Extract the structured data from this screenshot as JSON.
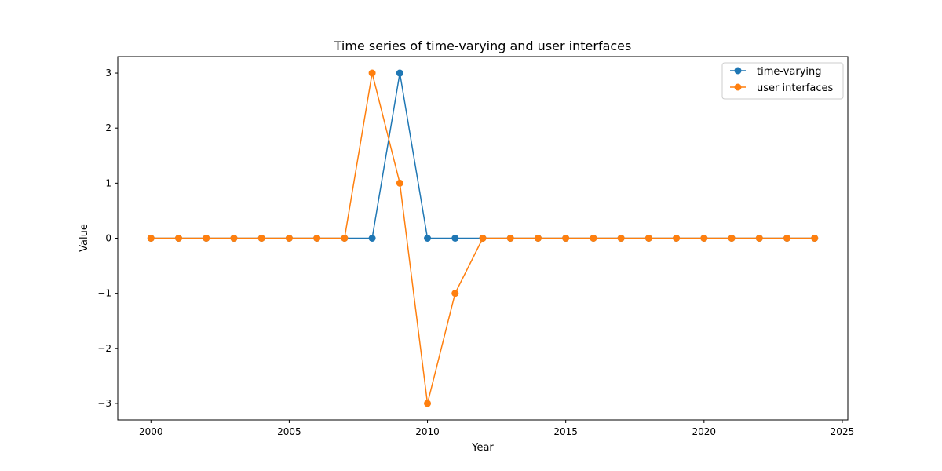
{
  "chart_data": {
    "type": "line",
    "title": "Time series of time-varying and user interfaces",
    "xlabel": "Year",
    "ylabel": "Value",
    "x": [
      2000,
      2001,
      2002,
      2003,
      2004,
      2005,
      2006,
      2007,
      2008,
      2009,
      2010,
      2011,
      2012,
      2013,
      2014,
      2015,
      2016,
      2017,
      2018,
      2019,
      2020,
      2021,
      2022,
      2023,
      2024
    ],
    "xlim": [
      1998.8,
      2025.2
    ],
    "ylim": [
      -3.3,
      3.3
    ],
    "xticks": [
      2000,
      2005,
      2010,
      2015,
      2020,
      2025
    ],
    "yticks": [
      -3,
      -2,
      -1,
      0,
      1,
      2,
      3
    ],
    "ytick_labels": [
      "−3",
      "−2",
      "−1",
      "0",
      "1",
      "2",
      "3"
    ],
    "grid": false,
    "legend_position": "top-right",
    "series": [
      {
        "name": "time-varying",
        "color": "#1f77b4",
        "marker": "circle",
        "values": [
          0,
          0,
          0,
          0,
          0,
          0,
          0,
          0,
          0,
          3,
          0,
          0,
          0,
          0,
          0,
          0,
          0,
          0,
          0,
          0,
          0,
          0,
          0,
          0,
          0
        ]
      },
      {
        "name": "user interfaces",
        "color": "#ff7f0e",
        "marker": "circle",
        "values": [
          0,
          0,
          0,
          0,
          0,
          0,
          0,
          0,
          3,
          1,
          -3,
          -1,
          0,
          0,
          0,
          0,
          0,
          0,
          0,
          0,
          0,
          0,
          0,
          0,
          0
        ]
      }
    ]
  }
}
